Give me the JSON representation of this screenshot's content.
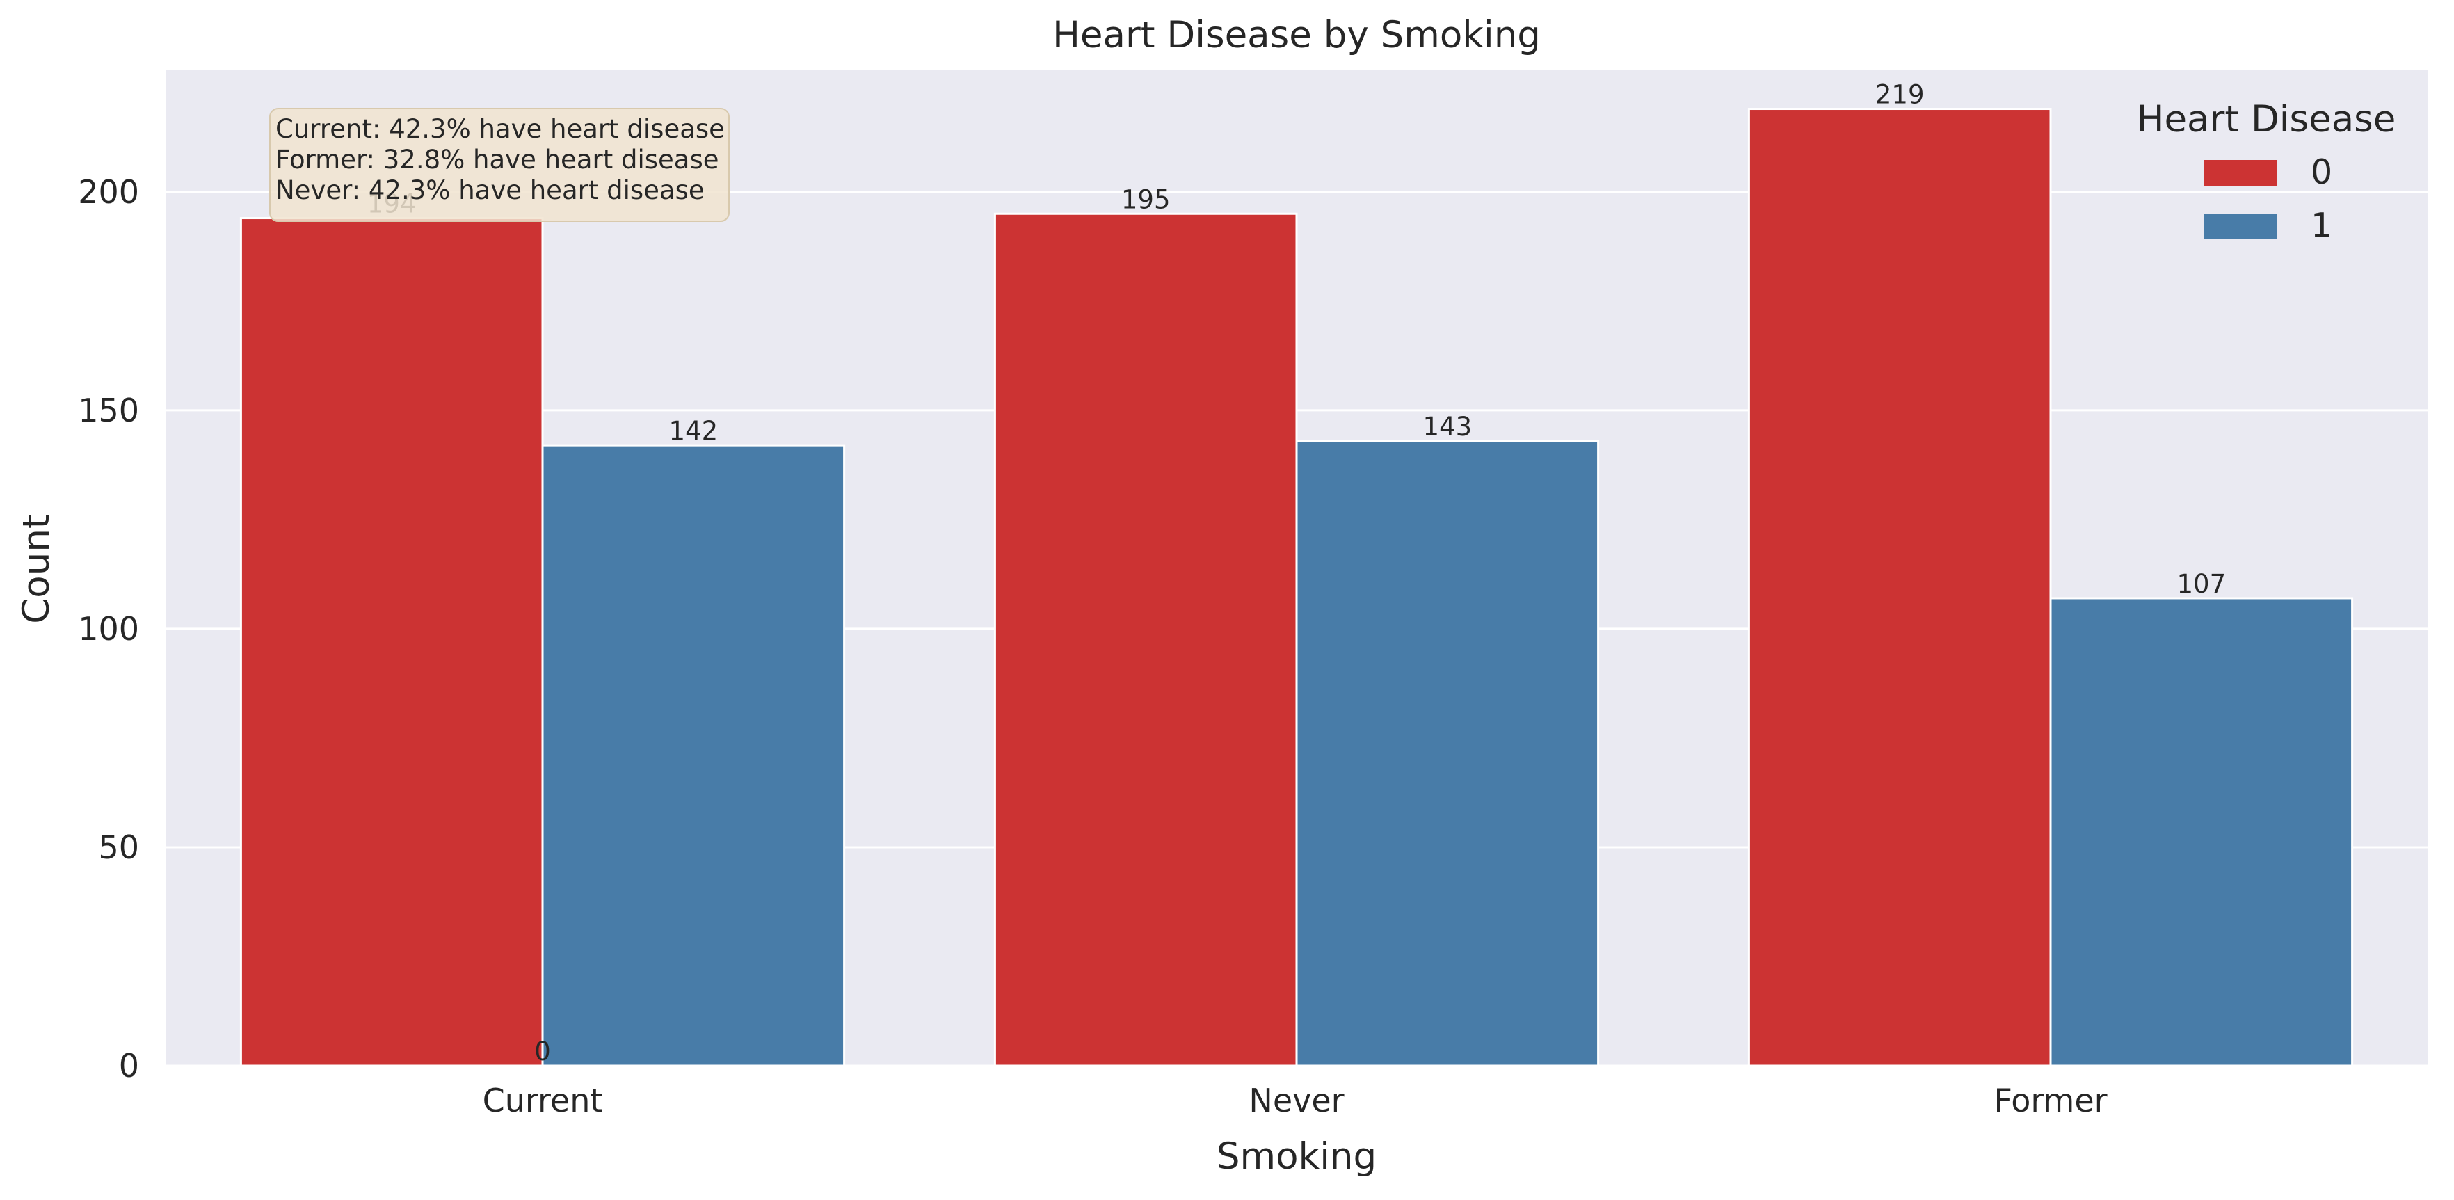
{
  "chart_data": {
    "type": "bar",
    "title": "Heart Disease by Smoking",
    "xlabel": "Smoking",
    "ylabel": "Count",
    "categories": [
      "Current",
      "Never",
      "Former"
    ],
    "series": [
      {
        "name": "0",
        "values": [
          194,
          195,
          219
        ],
        "color": "#cc3333"
      },
      {
        "name": "1",
        "values": [
          142,
          143,
          107
        ],
        "color": "#487ca8"
      }
    ],
    "ylim": [
      0,
      228
    ],
    "yticks": [
      0,
      50,
      100,
      150,
      200
    ],
    "grid": true,
    "background_color": "#eaeaf2",
    "legend": {
      "title": "Heart Disease",
      "position": "top-right"
    },
    "extra_labels": [
      {
        "text": "0",
        "category": "Current"
      }
    ],
    "annotation": {
      "lines": [
        "Current: 42.3% have heart disease",
        "Former: 32.8% have heart disease",
        "Never: 42.3% have heart disease"
      ],
      "position": "top-left",
      "box_color": "#f1e4d0"
    }
  }
}
